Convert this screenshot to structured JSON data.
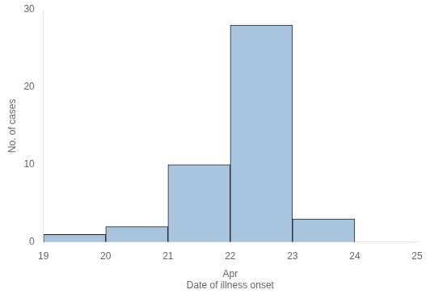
{
  "chart_data": {
    "type": "histogram",
    "bins": [
      19,
      20,
      21,
      22,
      23,
      24
    ],
    "values": [
      1,
      2,
      10,
      28,
      3
    ],
    "color": "#a8c4de",
    "xlim": [
      19,
      25
    ],
    "xticks": [
      19,
      20,
      21,
      22,
      23,
      24,
      25
    ],
    "ylim": [
      0,
      30
    ],
    "yticks": [
      0,
      10,
      20,
      30
    ],
    "xlabel": "Apr",
    "annotations": [
      "Date of illness onset"
    ],
    "ylabel": "No. of cases",
    "grid": false
  }
}
